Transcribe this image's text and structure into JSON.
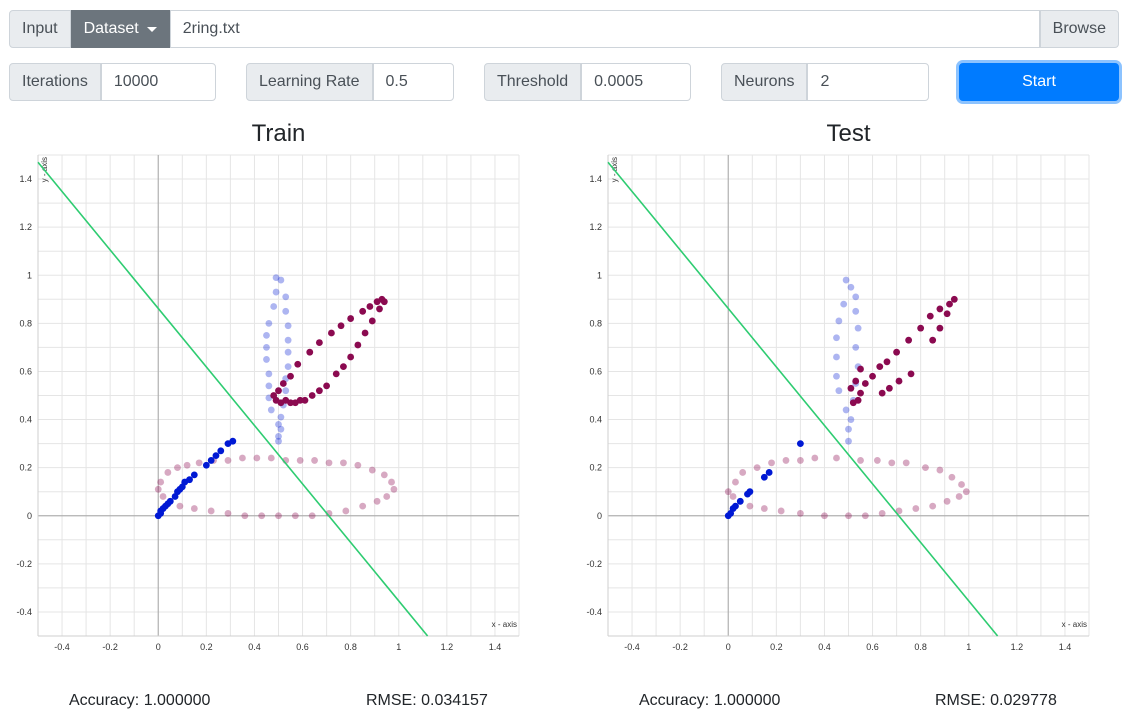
{
  "toolbar": {
    "input_label": "Input",
    "dataset_label": "Dataset",
    "file_name": "2ring.txt",
    "browse_label": "Browse"
  },
  "params": {
    "iterations_label": "Iterations",
    "iterations_value": "10000",
    "learning_rate_label": "Learning Rate",
    "learning_rate_value": "0.5",
    "threshold_label": "Threshold",
    "threshold_value": "0.0005",
    "neurons_label": "Neurons",
    "neurons_value": "2",
    "start_label": "Start"
  },
  "colors": {
    "class_a": "#0019d4",
    "class_b": "#8b0a50",
    "boundary": "#2ecc71",
    "primary": "#007bff"
  },
  "chart_data": [
    {
      "type": "scatter",
      "title": "Train",
      "xlabel": "x - axis",
      "ylabel": "y - axis",
      "xlim": [
        -0.5,
        1.5
      ],
      "ylim": [
        -0.5,
        1.5
      ],
      "xticks": [
        "-0.4",
        "-0.2",
        "0",
        "0.2",
        "0.4",
        "0.6",
        "0.8",
        "1",
        "1.2",
        "1.4"
      ],
      "yticks": [
        "-0.4",
        "-0.2",
        "0",
        "0.2",
        "0.4",
        "0.6",
        "0.8",
        "1",
        "1.2",
        "1.4"
      ],
      "grid": true,
      "boundary_line": {
        "x": [
          -0.5,
          1.12
        ],
        "y": [
          1.47,
          -0.5
        ]
      },
      "series": [
        {
          "class": "a",
          "points": [
            [
              0.0,
              0.0
            ],
            [
              0.01,
              0.01
            ],
            [
              0.01,
              0.02
            ],
            [
              0.02,
              0.03
            ],
            [
              0.03,
              0.04
            ],
            [
              0.04,
              0.05
            ],
            [
              0.05,
              0.06
            ],
            [
              0.07,
              0.08
            ],
            [
              0.08,
              0.1
            ],
            [
              0.09,
              0.11
            ],
            [
              0.1,
              0.12
            ],
            [
              0.11,
              0.14
            ],
            [
              0.13,
              0.15
            ],
            [
              0.15,
              0.17
            ],
            [
              0.2,
              0.21
            ],
            [
              0.22,
              0.23
            ],
            [
              0.24,
              0.25
            ],
            [
              0.26,
              0.27
            ],
            [
              0.29,
              0.3
            ],
            [
              0.31,
              0.31
            ]
          ]
        },
        {
          "class": "a-faded",
          "points": [
            [
              0.49,
              0.99
            ],
            [
              0.51,
              0.98
            ],
            [
              0.49,
              0.93
            ],
            [
              0.53,
              0.91
            ],
            [
              0.48,
              0.87
            ],
            [
              0.53,
              0.85
            ],
            [
              0.46,
              0.8
            ],
            [
              0.54,
              0.79
            ],
            [
              0.45,
              0.75
            ],
            [
              0.54,
              0.73
            ],
            [
              0.45,
              0.7
            ],
            [
              0.54,
              0.68
            ],
            [
              0.45,
              0.65
            ],
            [
              0.54,
              0.62
            ],
            [
              0.46,
              0.59
            ],
            [
              0.53,
              0.57
            ],
            [
              0.46,
              0.54
            ],
            [
              0.53,
              0.52
            ],
            [
              0.46,
              0.49
            ],
            [
              0.52,
              0.46
            ],
            [
              0.47,
              0.44
            ],
            [
              0.51,
              0.41
            ],
            [
              0.5,
              0.38
            ],
            [
              0.51,
              0.36
            ],
            [
              0.5,
              0.33
            ],
            [
              0.5,
              0.31
            ]
          ]
        },
        {
          "class": "b",
          "points": [
            [
              0.49,
              0.48
            ],
            [
              0.51,
              0.47
            ],
            [
              0.53,
              0.48
            ],
            [
              0.55,
              0.47
            ],
            [
              0.57,
              0.47
            ],
            [
              0.59,
              0.48
            ],
            [
              0.61,
              0.48
            ],
            [
              0.64,
              0.5
            ],
            [
              0.67,
              0.52
            ],
            [
              0.7,
              0.54
            ],
            [
              0.74,
              0.59
            ],
            [
              0.77,
              0.62
            ],
            [
              0.8,
              0.66
            ],
            [
              0.83,
              0.71
            ],
            [
              0.86,
              0.76
            ],
            [
              0.89,
              0.81
            ],
            [
              0.92,
              0.86
            ],
            [
              0.94,
              0.89
            ],
            [
              0.93,
              0.9
            ],
            [
              0.91,
              0.89
            ],
            [
              0.88,
              0.87
            ],
            [
              0.85,
              0.85
            ],
            [
              0.8,
              0.82
            ],
            [
              0.76,
              0.79
            ],
            [
              0.72,
              0.76
            ],
            [
              0.67,
              0.72
            ],
            [
              0.63,
              0.68
            ],
            [
              0.58,
              0.63
            ],
            [
              0.55,
              0.58
            ],
            [
              0.52,
              0.55
            ],
            [
              0.5,
              0.52
            ],
            [
              0.48,
              0.5
            ]
          ]
        },
        {
          "class": "b-faded",
          "points": [
            [
              0.0,
              0.11
            ],
            [
              0.01,
              0.14
            ],
            [
              0.04,
              0.18
            ],
            [
              0.08,
              0.2
            ],
            [
              0.12,
              0.21
            ],
            [
              0.17,
              0.22
            ],
            [
              0.23,
              0.23
            ],
            [
              0.29,
              0.23
            ],
            [
              0.35,
              0.24
            ],
            [
              0.41,
              0.24
            ],
            [
              0.47,
              0.24
            ],
            [
              0.53,
              0.23
            ],
            [
              0.59,
              0.23
            ],
            [
              0.65,
              0.23
            ],
            [
              0.71,
              0.22
            ],
            [
              0.77,
              0.22
            ],
            [
              0.83,
              0.21
            ],
            [
              0.89,
              0.19
            ],
            [
              0.94,
              0.17
            ],
            [
              0.97,
              0.14
            ],
            [
              0.98,
              0.11
            ],
            [
              0.95,
              0.08
            ],
            [
              0.91,
              0.06
            ],
            [
              0.85,
              0.04
            ],
            [
              0.78,
              0.02
            ],
            [
              0.71,
              0.01
            ],
            [
              0.64,
              0.0
            ],
            [
              0.57,
              0.0
            ],
            [
              0.5,
              0.0
            ],
            [
              0.43,
              0.0
            ],
            [
              0.36,
              0.0
            ],
            [
              0.29,
              0.01
            ],
            [
              0.22,
              0.02
            ],
            [
              0.15,
              0.03
            ],
            [
              0.09,
              0.04
            ],
            [
              0.05,
              0.06
            ],
            [
              0.02,
              0.08
            ]
          ]
        }
      ]
    },
    {
      "type": "scatter",
      "title": "Test",
      "xlabel": "x - axis",
      "ylabel": "y - axis",
      "xlim": [
        -0.5,
        1.5
      ],
      "ylim": [
        -0.5,
        1.5
      ],
      "xticks": [
        "-0.4",
        "-0.2",
        "0",
        "0.2",
        "0.4",
        "0.6",
        "0.8",
        "1",
        "1.2",
        "1.4"
      ],
      "yticks": [
        "-0.4",
        "-0.2",
        "0",
        "0.2",
        "0.4",
        "0.6",
        "0.8",
        "1",
        "1.2",
        "1.4"
      ],
      "grid": true,
      "boundary_line": {
        "x": [
          -0.5,
          1.12
        ],
        "y": [
          1.47,
          -0.5
        ]
      },
      "series": [
        {
          "class": "a",
          "points": [
            [
              0.0,
              0.0
            ],
            [
              0.01,
              0.01
            ],
            [
              0.02,
              0.03
            ],
            [
              0.03,
              0.04
            ],
            [
              0.05,
              0.06
            ],
            [
              0.08,
              0.09
            ],
            [
              0.09,
              0.1
            ],
            [
              0.15,
              0.16
            ],
            [
              0.17,
              0.18
            ],
            [
              0.3,
              0.3
            ]
          ]
        },
        {
          "class": "a-faded",
          "points": [
            [
              0.49,
              0.98
            ],
            [
              0.51,
              0.95
            ],
            [
              0.53,
              0.91
            ],
            [
              0.48,
              0.88
            ],
            [
              0.53,
              0.85
            ],
            [
              0.46,
              0.81
            ],
            [
              0.54,
              0.78
            ],
            [
              0.45,
              0.74
            ],
            [
              0.53,
              0.7
            ],
            [
              0.45,
              0.66
            ],
            [
              0.54,
              0.62
            ],
            [
              0.45,
              0.58
            ],
            [
              0.53,
              0.55
            ],
            [
              0.46,
              0.52
            ],
            [
              0.52,
              0.48
            ],
            [
              0.49,
              0.44
            ],
            [
              0.51,
              0.4
            ],
            [
              0.5,
              0.36
            ],
            [
              0.5,
              0.31
            ]
          ]
        },
        {
          "class": "b",
          "points": [
            [
              0.52,
              0.47
            ],
            [
              0.54,
              0.48
            ],
            [
              0.55,
              0.51
            ],
            [
              0.57,
              0.55
            ],
            [
              0.6,
              0.58
            ],
            [
              0.63,
              0.62
            ],
            [
              0.66,
              0.64
            ],
            [
              0.7,
              0.68
            ],
            [
              0.75,
              0.73
            ],
            [
              0.8,
              0.78
            ],
            [
              0.84,
              0.83
            ],
            [
              0.88,
              0.86
            ],
            [
              0.92,
              0.88
            ],
            [
              0.94,
              0.9
            ],
            [
              0.91,
              0.84
            ],
            [
              0.88,
              0.78
            ],
            [
              0.85,
              0.73
            ],
            [
              0.64,
              0.51
            ],
            [
              0.67,
              0.53
            ],
            [
              0.71,
              0.56
            ],
            [
              0.76,
              0.59
            ],
            [
              0.51,
              0.53
            ],
            [
              0.53,
              0.56
            ],
            [
              0.55,
              0.61
            ]
          ]
        },
        {
          "class": "b-faded",
          "points": [
            [
              0.0,
              0.1
            ],
            [
              0.03,
              0.14
            ],
            [
              0.06,
              0.18
            ],
            [
              0.12,
              0.2
            ],
            [
              0.18,
              0.22
            ],
            [
              0.24,
              0.23
            ],
            [
              0.3,
              0.23
            ],
            [
              0.36,
              0.24
            ],
            [
              0.45,
              0.24
            ],
            [
              0.55,
              0.23
            ],
            [
              0.62,
              0.23
            ],
            [
              0.68,
              0.22
            ],
            [
              0.74,
              0.22
            ],
            [
              0.82,
              0.2
            ],
            [
              0.88,
              0.19
            ],
            [
              0.93,
              0.16
            ],
            [
              0.97,
              0.13
            ],
            [
              0.99,
              0.1
            ],
            [
              0.96,
              0.08
            ],
            [
              0.91,
              0.06
            ],
            [
              0.85,
              0.04
            ],
            [
              0.78,
              0.03
            ],
            [
              0.71,
              0.02
            ],
            [
              0.64,
              0.01
            ],
            [
              0.57,
              0.0
            ],
            [
              0.5,
              0.0
            ],
            [
              0.4,
              0.0
            ],
            [
              0.3,
              0.01
            ],
            [
              0.22,
              0.02
            ],
            [
              0.15,
              0.03
            ],
            [
              0.09,
              0.04
            ],
            [
              0.05,
              0.06
            ],
            [
              0.02,
              0.08
            ]
          ]
        }
      ]
    }
  ],
  "metrics": {
    "train_accuracy": "Accuracy: 1.000000",
    "train_rmse": "RMSE: 0.034157",
    "test_accuracy": "Accuracy: 1.000000",
    "test_rmse": "RMSE: 0.029778"
  }
}
